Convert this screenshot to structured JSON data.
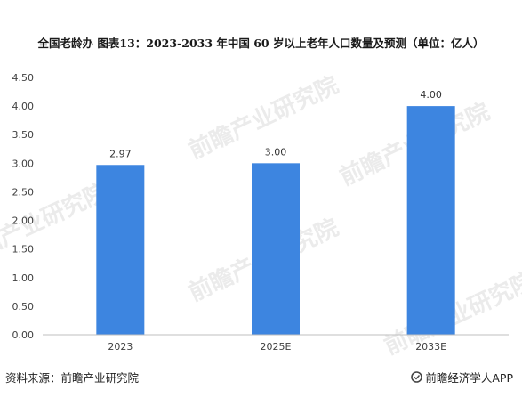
{
  "header": {
    "title": "全国老龄办  图表13：2023-2033 年中国 60 岁以上老年人口数量及预测（单位：亿人）"
  },
  "footer": {
    "source": "资料来源：前瞻产业研究院",
    "brand": "前瞻经济学人APP"
  },
  "watermark": {
    "text": "前瞻产业研究院"
  },
  "colors": {
    "bar": "#3d85e0",
    "axis": "#bfbfbf",
    "text": "#404040"
  },
  "chart_data": {
    "type": "bar",
    "title": "2023-2033 年中国 60 岁以上老年人口数量及预测（单位：亿人）",
    "categories": [
      "2023",
      "2025E",
      "2033E"
    ],
    "values": [
      2.97,
      3.0,
      4.0
    ],
    "value_labels": [
      "2.97",
      "3.00",
      "4.00"
    ],
    "ylim": [
      0,
      4.5
    ],
    "yticks": [
      "0.00",
      "0.50",
      "1.00",
      "1.50",
      "2.00",
      "2.50",
      "3.00",
      "3.50",
      "4.00",
      "4.50"
    ],
    "grid": false,
    "legend": "none",
    "xlabel": "",
    "ylabel": ""
  }
}
